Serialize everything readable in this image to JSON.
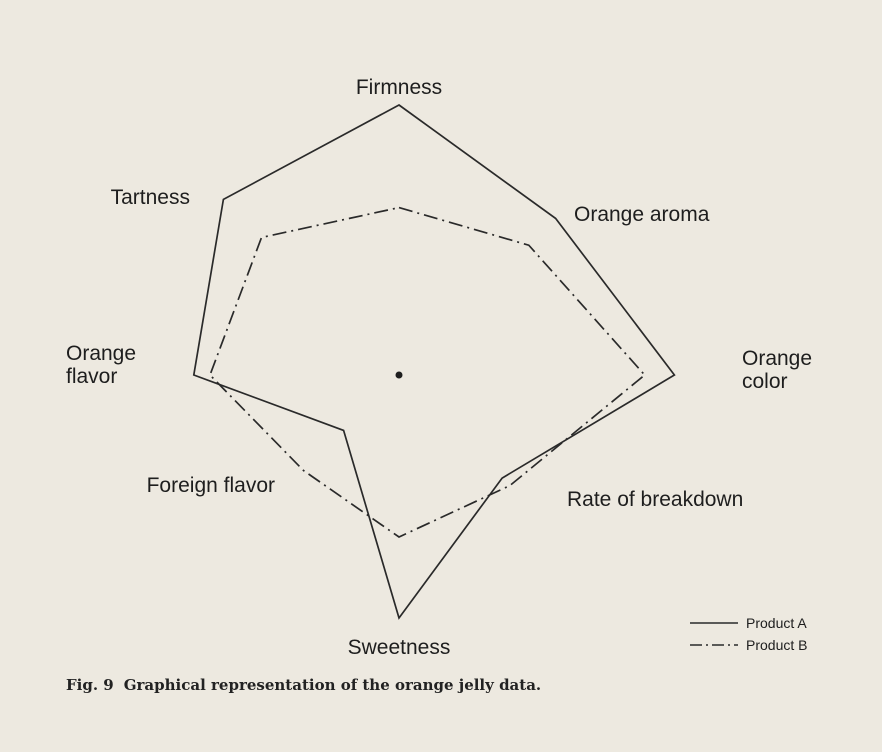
{
  "chart_data": {
    "type": "radar",
    "axes": [
      "Firmness",
      "Orange aroma",
      "Orange color",
      "Rate of breakdown",
      "Sweetness",
      "Foreign flavor",
      "Orange flavor",
      "Tartness"
    ],
    "axis_labels": [
      [
        "Firmness"
      ],
      [
        "Orange aroma"
      ],
      [
        "Orange",
        "color"
      ],
      [
        "Rate of breakdown"
      ],
      [
        "Sweetness"
      ],
      [
        "Foreign flavor"
      ],
      [
        "Orange",
        "flavor"
      ],
      [
        "Tartness"
      ]
    ],
    "series": [
      {
        "name": "Product A",
        "style": "solid",
        "values": [
          10.0,
          8.2,
          10.2,
          5.4,
          9.0,
          2.9,
          7.6,
          9.2
        ]
      },
      {
        "name": "Product B",
        "style": "dash-dot",
        "values": [
          6.2,
          6.8,
          9.1,
          5.8,
          6.0,
          5.0,
          7.0,
          7.2
        ]
      }
    ],
    "range": [
      0,
      10
    ],
    "grid": false,
    "center_marker": true,
    "legend_position": "bottom-right",
    "line_color": "#2a2a2a"
  },
  "caption": {
    "number": "Fig. 9",
    "text": "Graphical representation of the orange jelly data."
  }
}
